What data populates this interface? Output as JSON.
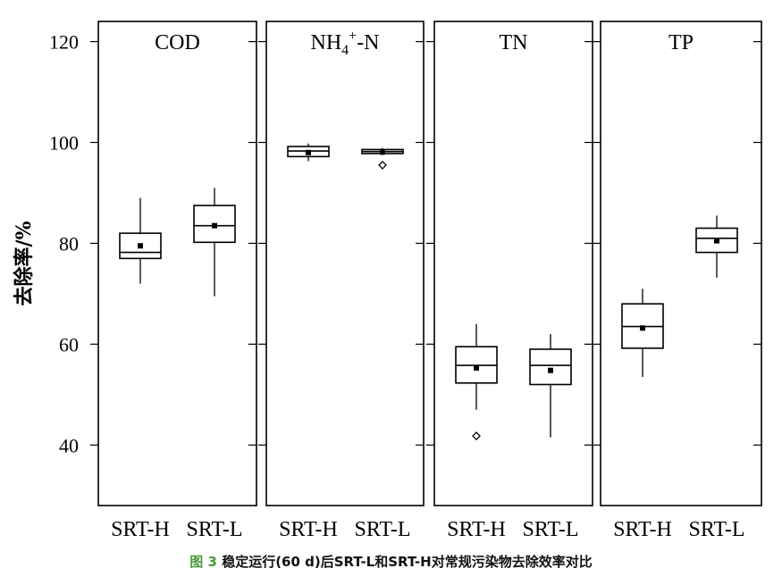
{
  "chart_data": {
    "type": "box",
    "ylabel": "去除率/%",
    "ylim": [
      28,
      124
    ],
    "yticks": [
      40,
      60,
      80,
      100,
      120
    ],
    "categories": [
      "SRT-H",
      "SRT-L"
    ],
    "panels": [
      {
        "title": "COD",
        "boxes": [
          {
            "category": "SRT-H",
            "whisker_low": 72,
            "q1": 77,
            "median": 78.2,
            "q3": 82,
            "whisker_high": 89,
            "mean": 79.5,
            "outliers": []
          },
          {
            "category": "SRT-L",
            "whisker_low": 69.5,
            "q1": 80.2,
            "median": 83.5,
            "q3": 87.5,
            "whisker_high": 91,
            "mean": 83.5,
            "outliers": []
          }
        ]
      },
      {
        "title": "NH4+-N",
        "title_parts": {
          "base": "NH",
          "sub": "4",
          "sup": "+",
          "rest": "-N"
        },
        "boxes": [
          {
            "category": "SRT-H",
            "whisker_low": 96.3,
            "q1": 97.2,
            "median": 98.3,
            "q3": 99.2,
            "whisker_high": 99.8,
            "mean": 98,
            "outliers": []
          },
          {
            "category": "SRT-L",
            "whisker_low": 97.5,
            "q1": 97.8,
            "median": 98.2,
            "q3": 98.6,
            "whisker_high": 98.9,
            "mean": 98.1,
            "outliers": [
              95.5
            ]
          }
        ]
      },
      {
        "title": "TN",
        "boxes": [
          {
            "category": "SRT-H",
            "whisker_low": 47,
            "q1": 52.3,
            "median": 55.8,
            "q3": 59.5,
            "whisker_high": 64,
            "mean": 55.3,
            "outliers": [
              41.8
            ]
          },
          {
            "category": "SRT-L",
            "whisker_low": 41.5,
            "q1": 52,
            "median": 55.8,
            "q3": 59,
            "whisker_high": 62,
            "mean": 54.8,
            "outliers": []
          }
        ]
      },
      {
        "title": "TP",
        "boxes": [
          {
            "category": "SRT-H",
            "whisker_low": 53.5,
            "q1": 59.2,
            "median": 63.5,
            "q3": 68,
            "whisker_high": 71,
            "mean": 63.2,
            "outliers": []
          },
          {
            "category": "SRT-L",
            "whisker_low": 73.2,
            "q1": 78.2,
            "median": 81,
            "q3": 83,
            "whisker_high": 85.5,
            "mean": 80.5,
            "outliers": []
          }
        ]
      }
    ]
  },
  "caption": {
    "figure_label": "图 3",
    "text": "稳定运行(60 d)后SRT-L和SRT-H对常规污染物去除效率对比"
  }
}
